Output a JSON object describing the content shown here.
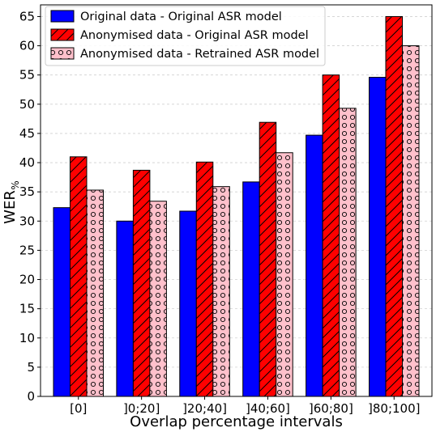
{
  "chart_data": {
    "type": "bar",
    "xlabel": "Overlap percentage intervals",
    "ylabel": "WER",
    "ylabel_subscript": "%",
    "categories": [
      "[0]",
      "]0;20]",
      "]20;40]",
      "]40;60]",
      "]60;80]",
      "]80;100]"
    ],
    "ylim": [
      0,
      67
    ],
    "yticks": [
      0,
      5,
      10,
      15,
      20,
      25,
      30,
      35,
      40,
      45,
      50,
      55,
      60,
      65
    ],
    "grid": "horizontal dashed",
    "legend_position": "top-left",
    "series": [
      {
        "name": "Original data - Original ASR model",
        "color": "#0000ff",
        "pattern": "solid",
        "values": [
          32.3,
          30.0,
          31.7,
          36.7,
          44.7,
          54.6
        ]
      },
      {
        "name": "Anonymised data - Original ASR model",
        "color": "#ff0000",
        "pattern": "hatch",
        "values": [
          41.0,
          38.7,
          40.1,
          46.9,
          55.0,
          65.0
        ]
      },
      {
        "name": "Anonymised data - Retrained ASR model",
        "color": "#ffc0cb",
        "pattern": "circles",
        "values": [
          35.3,
          33.4,
          35.9,
          41.7,
          49.3,
          60.0
        ]
      }
    ]
  }
}
